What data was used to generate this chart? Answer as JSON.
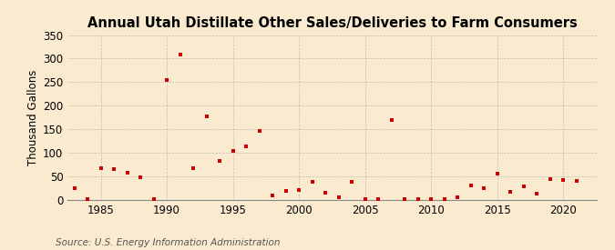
{
  "title": "Annual Utah Distillate Other Sales/Deliveries to Farm Consumers",
  "ylabel": "Thousand Gallons",
  "source": "Source: U.S. Energy Information Administration",
  "background_color": "#faebd0",
  "plot_bg_color": "#faebd0",
  "marker_color": "#cc0000",
  "years": [
    1983,
    1984,
    1985,
    1986,
    1987,
    1988,
    1989,
    1990,
    1991,
    1992,
    1993,
    1994,
    1995,
    1996,
    1997,
    1998,
    1999,
    2000,
    2001,
    2002,
    2003,
    2004,
    2005,
    2006,
    2007,
    2008,
    2009,
    2010,
    2011,
    2012,
    2013,
    2014,
    2015,
    2016,
    2017,
    2018,
    2019,
    2020,
    2021
  ],
  "values": [
    25,
    1,
    68,
    65,
    58,
    49,
    1,
    255,
    308,
    68,
    178,
    83,
    104,
    113,
    146,
    10,
    20,
    22,
    38,
    16,
    5,
    38,
    1,
    1,
    170,
    1,
    1,
    1,
    1,
    5,
    30,
    25,
    55,
    17,
    29,
    13,
    45,
    43,
    40
  ],
  "xlim": [
    1982.5,
    2022.5
  ],
  "ylim": [
    0,
    350
  ],
  "yticks": [
    0,
    50,
    100,
    150,
    200,
    250,
    300,
    350
  ],
  "xticks": [
    1985,
    1990,
    1995,
    2000,
    2005,
    2010,
    2015,
    2020
  ],
  "title_fontsize": 10.5,
  "label_fontsize": 8.5,
  "tick_fontsize": 8.5,
  "source_fontsize": 7.5,
  "grid_color": "#aaaaaa",
  "spine_color": "#888888"
}
